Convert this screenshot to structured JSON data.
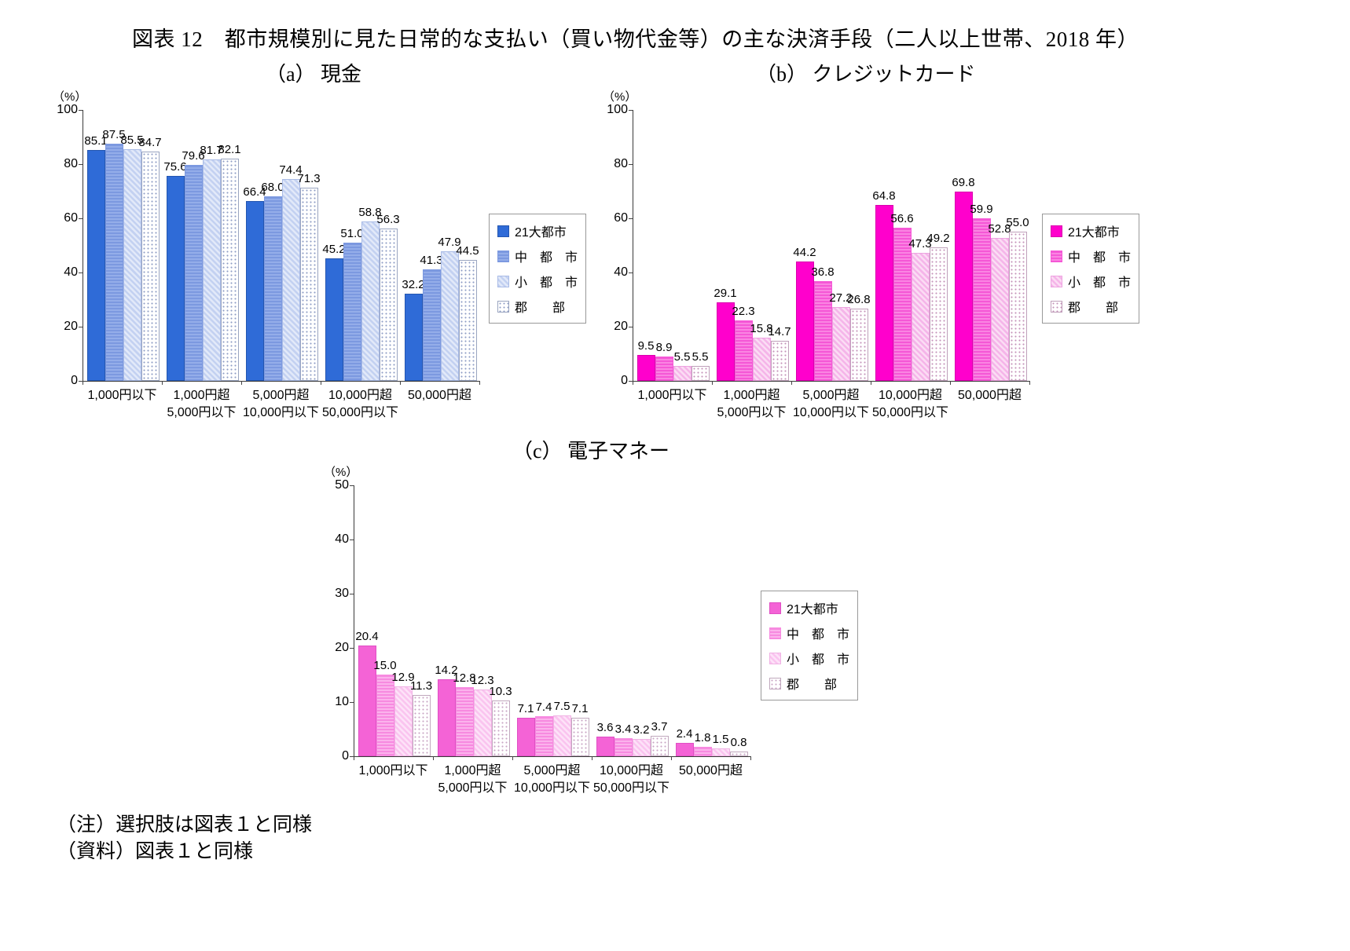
{
  "page": {
    "title": "図表 12　都市規模別に見た日常的な支払い（買い物代金等）の主な決済手段（二人以上世帯、2018 年）",
    "notes": [
      "（注）選択肢は図表１と同様",
      "（資料）図表１と同様"
    ]
  },
  "chart_data": [
    {
      "id": "a",
      "type": "bar",
      "title": "（a） 現金",
      "unit": "（%）",
      "ylim": [
        0,
        100
      ],
      "yticks": [
        0,
        20,
        40,
        60,
        80,
        100
      ],
      "legend_position": "right",
      "grid": false,
      "categories": [
        "1,000円以下",
        "1,000円超\n5,000円以下",
        "5,000円超\n10,000円以下",
        "10,000円超\n50,000円以下",
        "50,000円超"
      ],
      "series": [
        {
          "name": "21大都市",
          "pattern": "solid",
          "color": "#2f6bd7",
          "color2": "#2f6bd7",
          "border": "#2456b0",
          "values": [
            "85.1",
            "75.6",
            "66.4",
            "45.2",
            "32.2"
          ]
        },
        {
          "name": "中　都　市",
          "pattern": "hstripe",
          "color": "#7c99e0",
          "color2": "#94ade9",
          "border": "#7c99e0",
          "values": [
            "87.5",
            "79.6",
            "68.0",
            "51.0",
            "41.3"
          ]
        },
        {
          "name": "小　都　市",
          "pattern": "hatch",
          "color": "#c3d1f1",
          "color2": "#e2e9f9",
          "border": "#a9bbe6",
          "values": [
            "85.5",
            "81.7",
            "74.4",
            "58.8",
            "47.9"
          ]
        },
        {
          "name": "郡　　部",
          "pattern": "dots",
          "color": "#8f9ec5",
          "color2": "#ffffff",
          "border": "#9aa5c0",
          "values": [
            "84.7",
            "82.1",
            "71.3",
            "56.3",
            "44.5"
          ]
        }
      ]
    },
    {
      "id": "b",
      "type": "bar",
      "title": "（b） クレジットカード",
      "unit": "（%）",
      "ylim": [
        0,
        100
      ],
      "yticks": [
        0,
        20,
        40,
        60,
        80,
        100
      ],
      "legend_position": "right",
      "grid": false,
      "categories": [
        "1,000円以下",
        "1,000円超\n5,000円以下",
        "5,000円超\n10,000円以下",
        "10,000円超\n50,000円以下",
        "50,000円超"
      ],
      "series": [
        {
          "name": "21大都市",
          "pattern": "solid",
          "color": "#ff00cc",
          "color2": "#ff00cc",
          "border": "#d900ad",
          "values": [
            "9.5",
            "29.1",
            "44.2",
            "64.8",
            "69.8"
          ]
        },
        {
          "name": "中　都　市",
          "pattern": "hstripe",
          "color": "#f557d6",
          "color2": "#fa84e2",
          "border": "#f557d6",
          "values": [
            "8.9",
            "22.3",
            "36.8",
            "56.6",
            "59.9"
          ]
        },
        {
          "name": "小　都　市",
          "pattern": "hatch",
          "color": "#f5b5e9",
          "color2": "#fbdcf4",
          "border": "#eda3e0",
          "values": [
            "5.5",
            "15.8",
            "27.2",
            "47.3",
            "52.8"
          ]
        },
        {
          "name": "郡　　部",
          "pattern": "dots",
          "color": "#c493ba",
          "color2": "#ffffff",
          "border": "#bfa0ba",
          "values": [
            "5.5",
            "14.7",
            "26.8",
            "49.2",
            "55.0"
          ]
        }
      ]
    },
    {
      "id": "c",
      "type": "bar",
      "title": "（c） 電子マネー",
      "unit": "（%）",
      "ylim": [
        0,
        50
      ],
      "yticks": [
        0,
        10,
        20,
        30,
        40,
        50
      ],
      "legend_position": "right",
      "grid": false,
      "categories": [
        "1,000円以下",
        "1,000円超\n5,000円以下",
        "5,000円超\n10,000円以下",
        "10,000円超\n50,000円以下",
        "50,000円超"
      ],
      "series": [
        {
          "name": "21大都市",
          "pattern": "solid",
          "color": "#f463d6",
          "color2": "#f463d6",
          "border": "#e04fc4",
          "values": [
            "20.4",
            "14.2",
            "7.1",
            "3.6",
            "2.4"
          ]
        },
        {
          "name": "中　都　市",
          "pattern": "hstripe",
          "color": "#f78ae0",
          "color2": "#fbb2ec",
          "border": "#f78ae0",
          "values": [
            "15.0",
            "12.8",
            "7.4",
            "3.4",
            "1.8"
          ]
        },
        {
          "name": "小　都　市",
          "pattern": "hatch",
          "color": "#fac4ef",
          "color2": "#fde2f8",
          "border": "#f0b2e4",
          "values": [
            "12.9",
            "12.3",
            "7.5",
            "3.2",
            "1.5"
          ]
        },
        {
          "name": "郡　　部",
          "pattern": "dots",
          "color": "#c9a6c4",
          "color2": "#ffffff",
          "border": "#c0a8bd",
          "values": [
            "11.3",
            "10.3",
            "7.1",
            "3.7",
            "0.8"
          ]
        }
      ]
    }
  ]
}
